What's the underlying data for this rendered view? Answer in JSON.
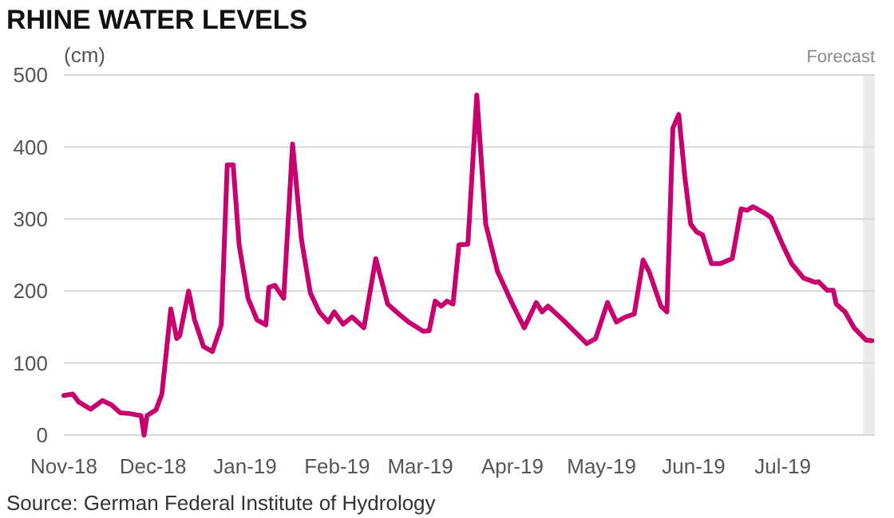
{
  "chart_data": {
    "type": "line",
    "title": "RHINE WATER LEVELS",
    "ylabel": "(cm)",
    "annotations": [
      "Source: German Federal Institute of Hydrology"
    ],
    "x": [
      "2018-11-01",
      "2018-11-04",
      "2018-11-06",
      "2018-11-10",
      "2018-11-14",
      "2018-11-17",
      "2018-11-20",
      "2018-11-23",
      "2018-11-27",
      "2018-11-28",
      "2018-11-29",
      "2018-12-02",
      "2018-12-04",
      "2018-12-07",
      "2018-12-09",
      "2018-12-10",
      "2018-12-13",
      "2018-12-15",
      "2018-12-18",
      "2018-12-21",
      "2018-12-24",
      "2018-12-26",
      "2018-12-28",
      "2018-12-30",
      "2019-01-02",
      "2019-01-05",
      "2019-01-08",
      "2019-01-09",
      "2019-01-11",
      "2019-01-14",
      "2019-01-17",
      "2019-01-20",
      "2019-01-23",
      "2019-01-26",
      "2019-01-29",
      "2019-01-31",
      "2019-02-03",
      "2019-02-06",
      "2019-02-10",
      "2019-02-14",
      "2019-02-18",
      "2019-02-21",
      "2019-02-25",
      "2019-03-02",
      "2019-03-04",
      "2019-03-06",
      "2019-03-08",
      "2019-03-10",
      "2019-03-12",
      "2019-03-14",
      "2019-03-17",
      "2019-03-20",
      "2019-03-23",
      "2019-03-27",
      "2019-04-01",
      "2019-04-05",
      "2019-04-09",
      "2019-04-11",
      "2019-04-13",
      "2019-04-18",
      "2019-04-26",
      "2019-04-29",
      "2019-05-03",
      "2019-05-06",
      "2019-05-09",
      "2019-05-12",
      "2019-05-15",
      "2019-05-17",
      "2019-05-21",
      "2019-05-23",
      "2019-05-25",
      "2019-05-27",
      "2019-05-29",
      "2019-05-31",
      "2019-06-02",
      "2019-06-04",
      "2019-06-07",
      "2019-06-10",
      "2019-06-14",
      "2019-06-17",
      "2019-06-19",
      "2019-06-21",
      "2019-06-25",
      "2019-06-27",
      "2019-07-01",
      "2019-07-04",
      "2019-07-08",
      "2019-07-12",
      "2019-07-13",
      "2019-07-16",
      "2019-07-18",
      "2019-07-19",
      "2019-07-22",
      "2019-07-25",
      "2019-07-29",
      "2019-07-31"
    ],
    "series": [
      {
        "color": "#c8006e",
        "values": [
          55,
          57,
          46,
          36,
          48,
          42,
          31,
          30,
          27,
          0,
          27,
          35,
          57,
          175,
          134,
          138,
          200,
          160,
          123,
          116,
          153,
          375,
          375,
          264,
          190,
          160,
          153,
          205,
          208,
          190,
          404,
          271,
          197,
          171,
          157,
          171,
          154,
          164,
          149,
          245,
          182,
          171,
          157,
          144,
          145,
          186,
          179,
          186,
          182,
          264,
          265,
          472,
          293,
          227,
          182,
          149,
          184,
          171,
          179,
          160,
          127,
          134,
          184,
          157,
          164,
          168,
          243,
          227,
          179,
          171,
          426,
          445,
          360,
          293,
          282,
          278,
          238,
          238,
          245,
          314,
          312,
          317,
          308,
          302,
          264,
          238,
          218,
          212,
          213,
          201,
          201,
          182,
          171,
          149,
          132,
          131
        ]
      }
    ],
    "xlim": [
      "2018-11-01",
      "2019-08-01"
    ],
    "xticks": [
      {
        "value": "2018-11-01",
        "label": "Nov-18"
      },
      {
        "value": "2018-12-01",
        "label": "Dec-18"
      },
      {
        "value": "2019-01-01",
        "label": "Jan-19"
      },
      {
        "value": "2019-02-01",
        "label": "Feb-19"
      },
      {
        "value": "2019-03-01",
        "label": "Mar-19"
      },
      {
        "value": "2019-04-01",
        "label": "Apr-19"
      },
      {
        "value": "2019-05-01",
        "label": "May-19"
      },
      {
        "value": "2019-06-01",
        "label": "Jun-19"
      },
      {
        "value": "2019-07-01",
        "label": "Jul-19"
      }
    ],
    "ylim": [
      0,
      500
    ],
    "yticks": [
      0,
      100,
      200,
      300,
      400,
      500
    ],
    "grid": "y",
    "bands": [
      {
        "axis": "x",
        "from": "2019-07-28",
        "to": "2019-08-01",
        "label": "Forecast",
        "color": "#ebebeb"
      }
    ],
    "line_style": "solid"
  }
}
